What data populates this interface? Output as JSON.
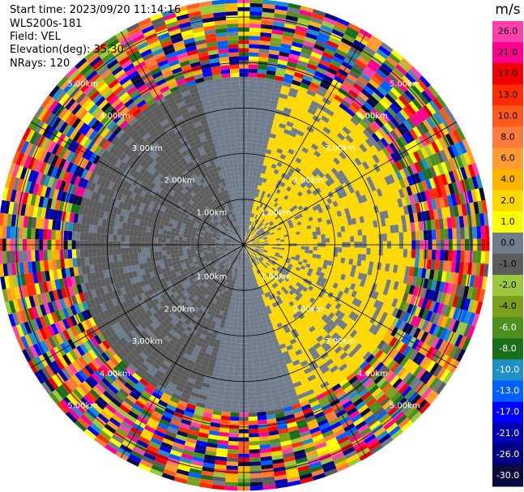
{
  "info": {
    "start_time": "Start time: 2023/09/20 11:14:16",
    "station": "WLS200s-181",
    "field": "Field: VEL",
    "elevation": "Elevation(deg): 35.30",
    "nrays": "NRays: 120"
  },
  "chart_data": {
    "type": "heatmap",
    "projection": "polar",
    "nrays": 120,
    "range_ring_labels": [
      "1.00km",
      "2.00km",
      "3.00km",
      "4.00km",
      "5.00km"
    ],
    "range_rings_km": [
      1,
      2,
      3,
      4,
      5
    ],
    "range_max_km": 5.4,
    "radial_spokes_deg": [
      0,
      30,
      60,
      90,
      120,
      150,
      180,
      210,
      240,
      270,
      300,
      330
    ],
    "colorbar": {
      "unit": "m/s",
      "ticks": [
        "26.0",
        "21.0",
        "17.0",
        "13.0",
        "10.0",
        "8.0",
        "6.0",
        "4.0",
        "2.0",
        "1.0",
        "0.0",
        "-1.0",
        "-2.0",
        "-4.0",
        "-6.0",
        "-8.0",
        "-10.0",
        "-13.0",
        "-17.0",
        "-21.0",
        "-26.0",
        "-30.0"
      ],
      "colors": [
        "#ff3fae",
        "#ff0090",
        "#f00000",
        "#ff2c00",
        "#ff5a1a",
        "#ff7b3c",
        "#ff9a30",
        "#ffb400",
        "#ffd800",
        "#ffff00",
        "#707c8c",
        "#5c5c5c",
        "#9bc83c",
        "#7aa01e",
        "#4e8f1e",
        "#1a6e1a",
        "#1e90c8",
        "#0060ff",
        "#0000ff",
        "#0000b0",
        "#000080",
        "#0a0a3c"
      ]
    },
    "fields": {
      "near_range_km": 3.6,
      "noise_start_km": 3.6,
      "sectors": [
        {
          "from_deg": 15,
          "to_deg": 160,
          "value": 1.5,
          "start_km": 0.5
        },
        {
          "from_deg": 160,
          "to_deg": 195,
          "value": 0.0,
          "start_km": 0.3
        },
        {
          "from_deg": 195,
          "to_deg": 345,
          "value": -1.5,
          "start_km": 0.6
        },
        {
          "from_deg": 345,
          "to_deg": 375,
          "value": 0.0,
          "start_km": 0.3
        }
      ]
    }
  }
}
